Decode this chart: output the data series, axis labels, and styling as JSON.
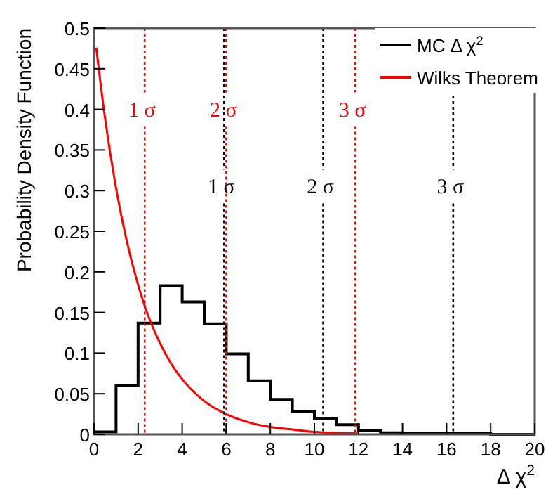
{
  "chart_data": {
    "type": "histogram",
    "xlabel": "Δ χ$^{2}$",
    "ylabel": "Probability Density Function",
    "xlim": [
      0,
      20
    ],
    "ylim": [
      0,
      0.5
    ],
    "xticks": [
      0,
      2,
      4,
      6,
      8,
      10,
      12,
      14,
      16,
      18,
      20
    ],
    "yticks": [
      0,
      0.05,
      0.1,
      0.15,
      0.2,
      0.25,
      0.3,
      0.35,
      0.4,
      0.45,
      0.5
    ],
    "legend": "top right",
    "series": [
      {
        "name": "MC  Δ χ$^{2}$",
        "color": "#000000",
        "bins": [
          0,
          1,
          2,
          3,
          4,
          5,
          6,
          7,
          8,
          9,
          10,
          11,
          12,
          13,
          14,
          15,
          16,
          17,
          18,
          19,
          20
        ],
        "values": [
          0.003,
          0.06,
          0.137,
          0.183,
          0.163,
          0.136,
          0.099,
          0.066,
          0.043,
          0.028,
          0.02,
          0.012,
          0.005,
          0.002,
          0.001,
          0.001,
          0.001,
          0.001,
          0,
          0
        ]
      },
      {
        "type": "line",
        "name": "Wilks Theorem",
        "color": "#ff0000",
        "x": [
          0.1,
          0.5,
          1,
          1.5,
          2,
          2.5,
          3,
          3.5,
          4,
          5,
          6,
          7,
          8,
          9,
          10,
          12
        ],
        "values": [
          0.476,
          0.389,
          0.303,
          0.236,
          0.184,
          0.143,
          0.112,
          0.087,
          0.068,
          0.041,
          0.025,
          0.015,
          0.009,
          0.006,
          0.003,
          0.001
        ]
      }
    ],
    "ref_lines": [
      {
        "axis": "x",
        "value": 2.3,
        "label": "1 σ",
        "color": "#ff0000",
        "line_style": "dotted"
      },
      {
        "axis": "x",
        "value": 6.0,
        "label": "2 σ",
        "color": "#ff0000",
        "line_style": "dotted"
      },
      {
        "axis": "x",
        "value": 11.85,
        "label": "3 σ",
        "color": "#ff0000",
        "line_style": "dotted"
      },
      {
        "axis": "x",
        "value": 5.9,
        "label": "1 σ",
        "color": "#000000",
        "line_style": "dotted"
      },
      {
        "axis": "x",
        "value": 10.4,
        "label": "2 σ",
        "color": "#000000",
        "line_style": "dotted"
      },
      {
        "axis": "x",
        "value": 16.3,
        "label": "3 σ",
        "color": "#000000",
        "line_style": "dotted"
      }
    ]
  }
}
